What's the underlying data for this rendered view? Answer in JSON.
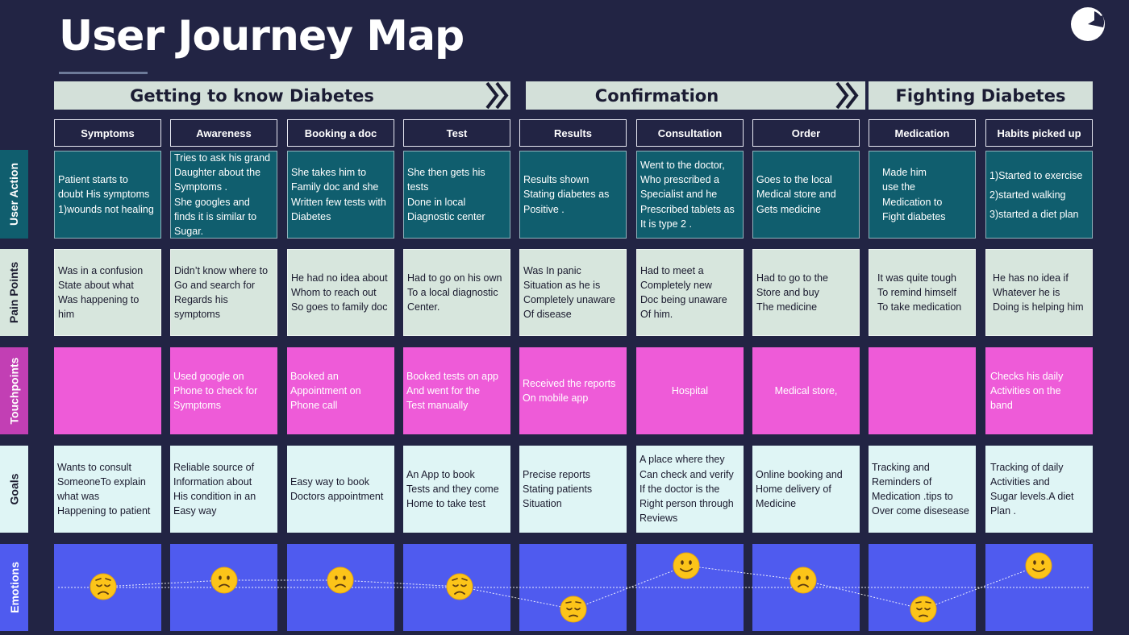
{
  "title": "User Journey Map",
  "phases": [
    {
      "label": "Getting to know Diabetes"
    },
    {
      "label": "Confirmation"
    },
    {
      "label": "Fighting Diabetes"
    }
  ],
  "rows": {
    "user_action": "User Action",
    "pain_points": "Pain Points",
    "touchpoints": "Touchpoints",
    "goals": "Goals",
    "emotions": "Emotions"
  },
  "stages": [
    {
      "name": "Symptoms",
      "emotion": "worried",
      "user_action": "Patient starts to\ndoubt His symptoms\n1)wounds not healing",
      "pain_point": "Was in a confusion\nState about what\nWas happening to\nhim",
      "touchpoint": "",
      "goal": "Wants to consult\nSomeoneTo explain\n what was\nHappening to patient"
    },
    {
      "name": "Awareness",
      "emotion": "sad",
      "user_action": "Tries to ask his grand\nDaughter about the\nSymptoms .\nShe googles and\nfinds it is similar to\nSugar.",
      "pain_point": "Didn’t know where to\nGo and search for\nRegards his symptoms",
      "touchpoint": " Used google on\n Phone to check for\n Symptoms",
      "goal": " Reliable source of\n Information about\n His condition in an\n Easy way"
    },
    {
      "name": "Booking a doc",
      "emotion": "sad",
      "user_action": "She takes him  to\nFamily doc and she\nWritten few tests with\nDiabetes",
      "pain_point": "He had no idea about\nWhom to reach out\nSo goes to family doc",
      "touchpoint": "  Booked an\n  Appointment on\n  Phone call",
      "goal": "Easy way to book\nDoctors appointment"
    },
    {
      "name": "Test",
      "emotion": "worried",
      "user_action": "She then gets his tests\nDone in local\nDiagnostic center",
      "pain_point": "Had to go on his own\nTo a local diagnostic\nCenter.",
      "touchpoint": "Booked tests on app\nAnd went for the\nTest manually",
      "goal": "An App to book\nTests and they come\nHome to take test"
    },
    {
      "name": "Results",
      "emotion": "pensive",
      "user_action": " Results shown\n Stating diabetes as\n Positive .",
      "pain_point": "Was In panic\nSituation as he is\nCompletely unaware\nOf disease",
      "touchpoint": "Received the reports\nOn mobile app",
      "goal": " Precise reports\n Stating patients\n Situation"
    },
    {
      "name": "Consultation",
      "emotion": "happy",
      "user_action": "Went to the doctor,\nWho prescribed a\nSpecialist  and he\nPrescribed tablets as\nIt is type 2 .",
      "pain_point": "Had to meet a\nCompletely new\nDoc being unaware\nOf him.",
      "touchpoint": "Hospital",
      "goal": "A place where they\nCan check and verify\nIf the doctor is the\nRight person through\nReviews"
    },
    {
      "name": "Order",
      "emotion": "sad",
      "user_action": "Goes to the local\nMedical store and\nGets medicine",
      "pain_point": "Had to go to the\nStore and buy\nThe medicine",
      "touchpoint": "Medical store,",
      "goal": "Online booking and\nHome delivery of\nMedicine"
    },
    {
      "name": "Medication",
      "emotion": "pensive",
      "user_action": "Made him\nuse the\nMedication to\nFight diabetes",
      "pain_point": "It was quite tough\nTo remind himself\nTo take medication",
      "touchpoint": "",
      "goal": "Tracking and\nReminders of\nMedication .tips to\nOver come disesease"
    },
    {
      "name": "Habits picked up",
      "emotion": "happy",
      "user_action": "1)Started to exercise\n2)started walking\n3)started a diet plan",
      "pain_point": "He has no idea if\nWhatever he is\nDoing is helping him",
      "touchpoint": "Checks his daily\nActivities on the\nband",
      "goal": "Tracking of daily\nActivities and\nSugar levels.A diet\nPlan ."
    }
  ],
  "colors": {
    "background": "#222444",
    "phase_bar": "#d3e0d9",
    "user_action": "#105e6e",
    "pain_points": "#d7e6dd",
    "touchpoints": "#ee5bd8",
    "goals": "#dff5f5",
    "emotions": "#4f5bef",
    "label_user_action": "#105e6e",
    "label_pain_points": "#d7e6dd",
    "label_touchpoints": "#c23fb4",
    "label_goals": "#dff5f5",
    "label_emotions": "#4f5bef"
  }
}
